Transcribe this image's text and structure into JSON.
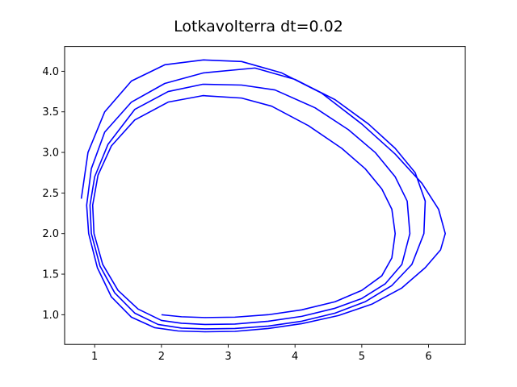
{
  "chart_data": {
    "type": "line",
    "title": "Lotkavolterra  dt=0.02",
    "xlabel": "",
    "ylabel": "",
    "xlim": [
      0.55,
      6.55
    ],
    "ylim": [
      0.634,
      4.306
    ],
    "x_ticks": [
      1,
      2,
      3,
      4,
      5,
      6
    ],
    "y_ticks": [
      1.0,
      1.5,
      2.0,
      2.5,
      3.0,
      3.5,
      4.0
    ],
    "x_tick_labels": [
      "1",
      "2",
      "3",
      "4",
      "5",
      "6"
    ],
    "y_tick_labels": [
      "1.0",
      "1.5",
      "2.0",
      "2.5",
      "3.0",
      "3.5",
      "4.0"
    ],
    "grid": false,
    "legend": "none",
    "line_color": "#0000ff",
    "series": [
      {
        "x": [
          2.0,
          2.3,
          2.65,
          3.1,
          3.6,
          4.1,
          4.6,
          5.0,
          5.3,
          5.45,
          5.5,
          5.45,
          5.3,
          5.05,
          4.7,
          4.2,
          3.65,
          3.2,
          2.62,
          2.1,
          1.6,
          1.25,
          1.05,
          0.97,
          0.99,
          1.12,
          1.35,
          1.65,
          2.0,
          2.3,
          2.65,
          3.1,
          3.6,
          4.1,
          4.6,
          5.0,
          5.35,
          5.6,
          5.72,
          5.68,
          5.5,
          5.2,
          4.8,
          4.3,
          3.7,
          3.2,
          2.62,
          2.1,
          1.6,
          1.2,
          1.0,
          0.93,
          0.95,
          1.08,
          1.3,
          1.6,
          1.95,
          2.3,
          2.65,
          3.1,
          3.6,
          4.1,
          4.6,
          5.05,
          5.45,
          5.75,
          5.93,
          5.95,
          5.8,
          5.5,
          5.1,
          4.6,
          4.0,
          3.4,
          2.63,
          2.05,
          1.55,
          1.15,
          0.95,
          0.88,
          0.91,
          1.04,
          1.25,
          1.55,
          1.9,
          2.25,
          2.65,
          3.1,
          3.6,
          4.1,
          4.65,
          5.15,
          5.6,
          5.95,
          6.18,
          6.25,
          6.15,
          5.9,
          5.5,
          5.0,
          4.4,
          3.8,
          3.2,
          2.63,
          2.05,
          1.55,
          1.15,
          0.9,
          0.8
        ],
        "y": [
          1.0,
          0.975,
          0.965,
          0.97,
          1.0,
          1.06,
          1.16,
          1.3,
          1.48,
          1.7,
          2.0,
          2.3,
          2.55,
          2.8,
          3.05,
          3.33,
          3.57,
          3.67,
          3.7,
          3.62,
          3.4,
          3.08,
          2.72,
          2.35,
          2.0,
          1.62,
          1.3,
          1.07,
          0.93,
          0.895,
          0.88,
          0.885,
          0.92,
          0.98,
          1.08,
          1.2,
          1.38,
          1.62,
          2.0,
          2.4,
          2.7,
          3.0,
          3.28,
          3.55,
          3.77,
          3.83,
          3.84,
          3.75,
          3.53,
          3.1,
          2.7,
          2.35,
          2.0,
          1.6,
          1.27,
          1.02,
          0.88,
          0.835,
          0.825,
          0.83,
          0.86,
          0.92,
          1.02,
          1.16,
          1.36,
          1.62,
          2.0,
          2.4,
          2.75,
          3.05,
          3.35,
          3.65,
          3.9,
          4.04,
          3.98,
          3.85,
          3.62,
          3.25,
          2.8,
          2.35,
          2.0,
          1.58,
          1.22,
          0.97,
          0.84,
          0.8,
          0.79,
          0.795,
          0.83,
          0.89,
          0.99,
          1.13,
          1.33,
          1.58,
          1.8,
          2.0,
          2.3,
          2.62,
          2.98,
          3.35,
          3.73,
          3.98,
          4.12,
          4.14,
          4.08,
          3.88,
          3.5,
          3.0,
          2.43
        ]
      }
    ]
  }
}
